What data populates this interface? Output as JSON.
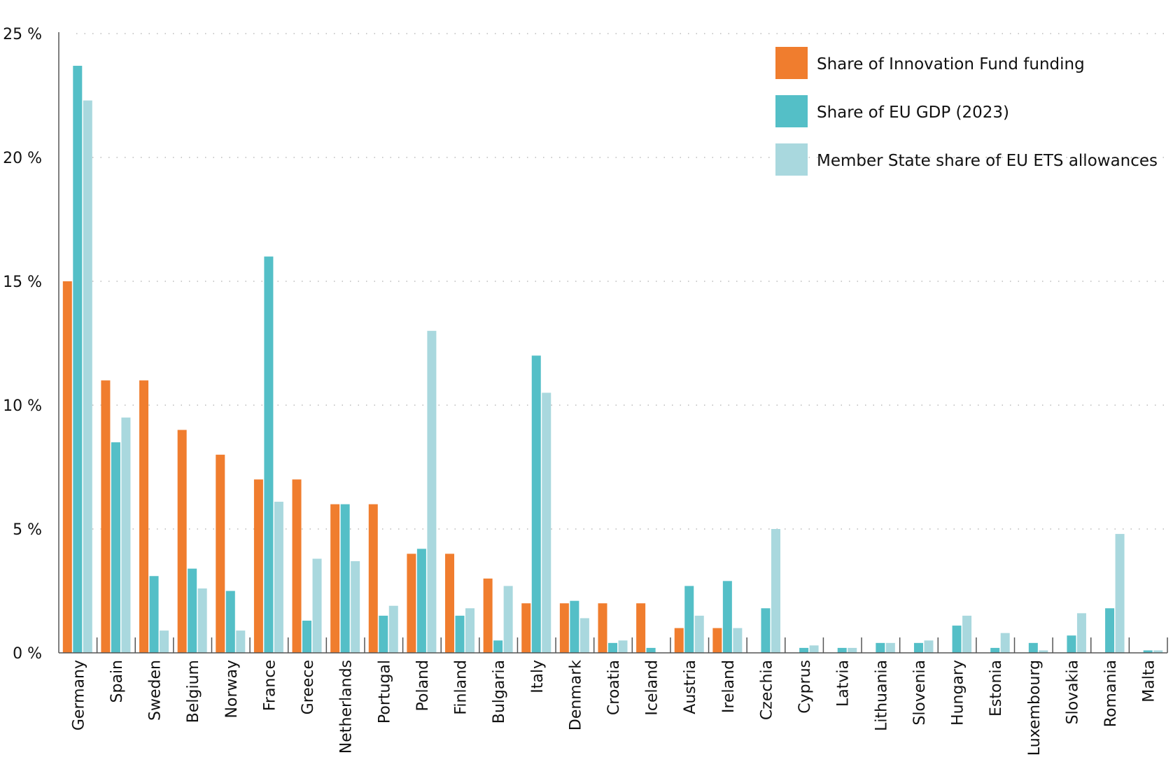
{
  "chart_data": {
    "type": "bar",
    "title": "",
    "xlabel": "",
    "ylabel": "",
    "ylim": [
      0,
      25
    ],
    "yticks": [
      "0 %",
      "5 %",
      "10 %",
      "15 %",
      "20 %",
      "25 %"
    ],
    "ytick_values": [
      0,
      5,
      10,
      15,
      20,
      25
    ],
    "grid": "horizontal dotted",
    "legend_position": "top-right",
    "categories": [
      "Germany",
      "Spain",
      "Sweden",
      "Belgium",
      "Norway",
      "France",
      "Greece",
      "Netherlands",
      "Portugal",
      "Poland",
      "Finland",
      "Bulgaria",
      "Italy",
      "Denmark",
      "Croatia",
      "Iceland",
      "Austria",
      "Ireland",
      "Czechia",
      "Cyprus",
      "Latvia",
      "Lithuania",
      "Slovenia",
      "Hungary",
      "Estonia",
      "Luxembourg",
      "Slovakia",
      "Romania",
      "Malta"
    ],
    "series": [
      {
        "name": "Share of Innovation Fund funding",
        "color": "#f07d2e",
        "values": [
          15.0,
          11.0,
          11.0,
          9.0,
          8.0,
          7.0,
          7.0,
          6.0,
          6.0,
          4.0,
          4.0,
          3.0,
          2.0,
          2.0,
          2.0,
          2.0,
          1.0,
          1.0,
          0,
          0,
          0,
          0,
          0,
          0,
          0,
          0,
          0,
          0,
          0
        ]
      },
      {
        "name": "Share of EU GDP (2023)",
        "color": "#54bfc7",
        "values": [
          23.7,
          8.5,
          3.1,
          3.4,
          2.5,
          16.0,
          1.3,
          6.0,
          1.5,
          4.2,
          1.5,
          0.5,
          12.0,
          2.1,
          0.4,
          0.2,
          2.7,
          2.9,
          1.8,
          0.2,
          0.2,
          0.4,
          0.4,
          1.1,
          0.2,
          0.4,
          0.7,
          1.8,
          0.1
        ]
      },
      {
        "name": "Member State share of EU ETS allowances",
        "color": "#a9d8de",
        "values": [
          22.3,
          9.5,
          0.9,
          2.6,
          0.9,
          6.1,
          3.8,
          3.7,
          1.9,
          13.0,
          1.8,
          2.7,
          10.5,
          1.4,
          0.5,
          0,
          1.5,
          1.0,
          5.0,
          0.3,
          0.2,
          0.4,
          0.5,
          1.5,
          0.8,
          0.1,
          1.6,
          4.8,
          0.1
        ]
      }
    ]
  }
}
